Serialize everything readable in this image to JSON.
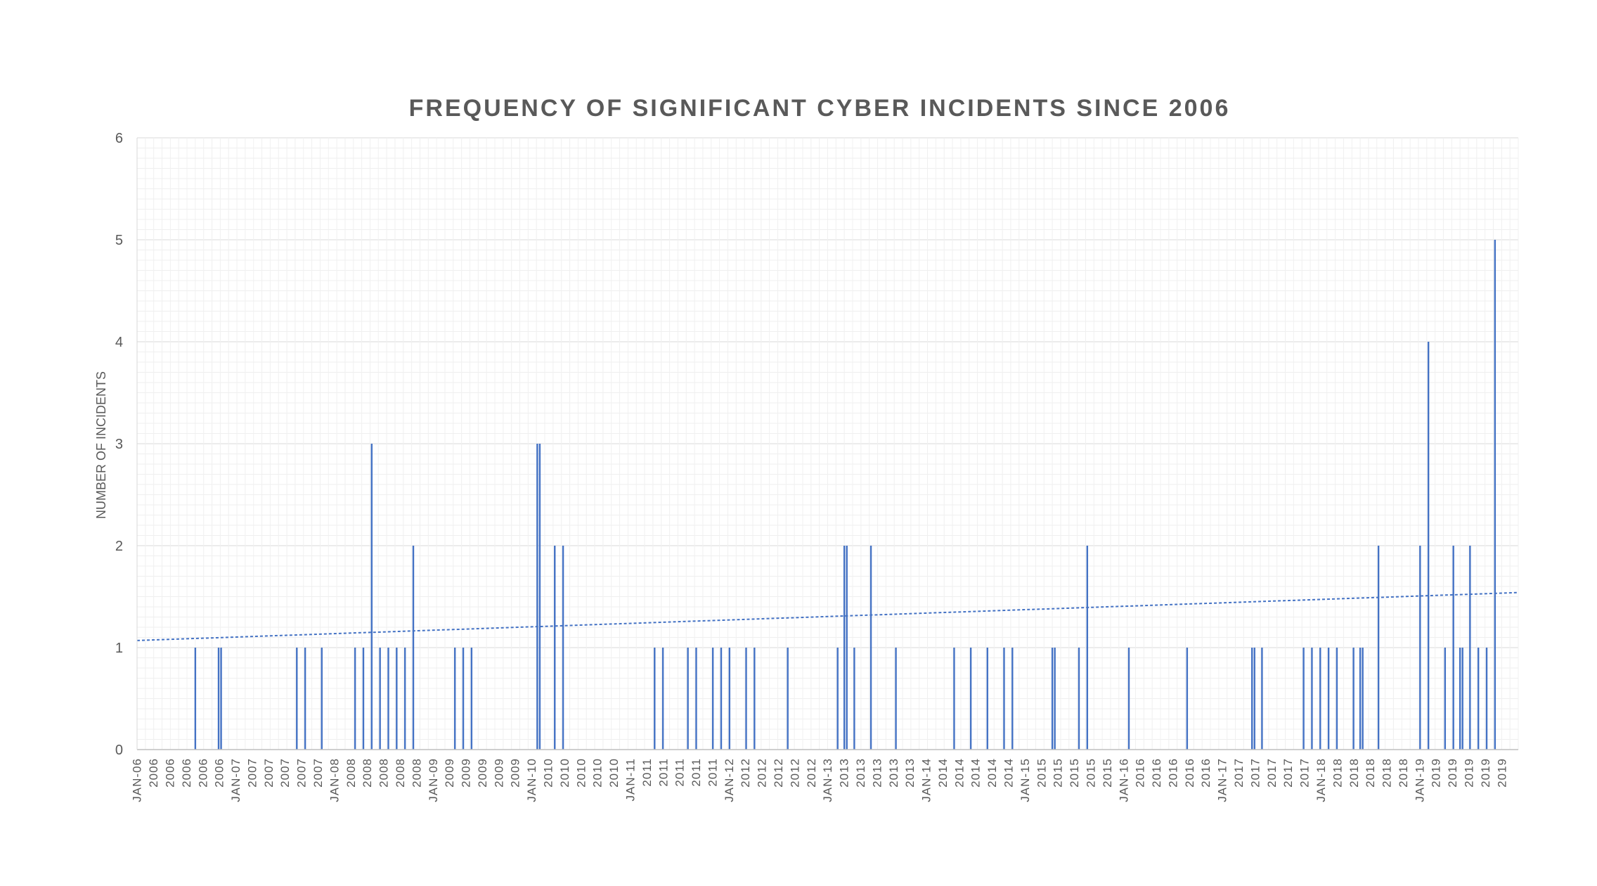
{
  "chart_data": {
    "type": "bar",
    "title": "FREQUENCY OF SIGNIFICANT CYBER INCIDENTS SINCE 2006",
    "xlabel": "",
    "ylabel": "NUMBER OF INCIDENTS",
    "ylim": [
      0,
      6
    ],
    "y_ticks": [
      "0",
      "1",
      "2",
      "3",
      "4",
      "5",
      "6"
    ],
    "grid": true,
    "legend": "none",
    "bar_color": "#4472C4",
    "trendline": {
      "type": "linear",
      "style": "dotted",
      "color": "#4472C4",
      "start": 1.07,
      "end": 1.54
    },
    "x_tick_labels": [
      "JAN-06",
      "2006",
      "2006",
      "2006",
      "2006",
      "2006",
      "JAN-07",
      "2007",
      "2007",
      "2007",
      "2007",
      "2007",
      "JAN-08",
      "2008",
      "2008",
      "2008",
      "2008",
      "2008",
      "JAN-09",
      "2009",
      "2009",
      "2009",
      "2009",
      "2009",
      "JAN-10",
      "2010",
      "2010",
      "2010",
      "2010",
      "2010",
      "JAN-11",
      "2011",
      "2011",
      "2011",
      "2011",
      "2011",
      "JAN-12",
      "2012",
      "2012",
      "2012",
      "2012",
      "2012",
      "JAN-13",
      "2013",
      "2013",
      "2013",
      "2013",
      "2013",
      "JAN-14",
      "2014",
      "2014",
      "2014",
      "2014",
      "2014",
      "JAN-15",
      "2015",
      "2015",
      "2015",
      "2015",
      "2015",
      "JAN-16",
      "2016",
      "2016",
      "2016",
      "2016",
      "2016",
      "JAN-17",
      "2017",
      "2017",
      "2017",
      "2017",
      "2017",
      "JAN-18",
      "2018",
      "2018",
      "2018",
      "2018",
      "2018",
      "JAN-19",
      "2019",
      "2019",
      "2019",
      "2019",
      "2019"
    ],
    "x_range_months": [
      0,
      166
    ],
    "points": [
      {
        "m": 7.0,
        "v": 1
      },
      {
        "m": 9.8,
        "v": 1
      },
      {
        "m": 10.1,
        "v": 1
      },
      {
        "m": 19.2,
        "v": 1
      },
      {
        "m": 20.2,
        "v": 1
      },
      {
        "m": 22.2,
        "v": 1
      },
      {
        "m": 26.2,
        "v": 1
      },
      {
        "m": 27.2,
        "v": 1
      },
      {
        "m": 28.2,
        "v": 3
      },
      {
        "m": 29.2,
        "v": 1
      },
      {
        "m": 30.2,
        "v": 1
      },
      {
        "m": 31.2,
        "v": 1
      },
      {
        "m": 32.2,
        "v": 1
      },
      {
        "m": 33.2,
        "v": 2
      },
      {
        "m": 38.2,
        "v": 1
      },
      {
        "m": 39.2,
        "v": 1
      },
      {
        "m": 40.2,
        "v": 1
      },
      {
        "m": 48.1,
        "v": 3
      },
      {
        "m": 48.4,
        "v": 3
      },
      {
        "m": 50.2,
        "v": 2
      },
      {
        "m": 51.2,
        "v": 2
      },
      {
        "m": 62.2,
        "v": 1
      },
      {
        "m": 63.2,
        "v": 1
      },
      {
        "m": 66.2,
        "v": 1
      },
      {
        "m": 67.2,
        "v": 1
      },
      {
        "m": 69.2,
        "v": 1
      },
      {
        "m": 70.2,
        "v": 1
      },
      {
        "m": 71.2,
        "v": 1
      },
      {
        "m": 73.2,
        "v": 1
      },
      {
        "m": 74.2,
        "v": 1
      },
      {
        "m": 78.2,
        "v": 1
      },
      {
        "m": 84.2,
        "v": 1
      },
      {
        "m": 85.0,
        "v": 2
      },
      {
        "m": 85.3,
        "v": 2
      },
      {
        "m": 86.2,
        "v": 1
      },
      {
        "m": 88.2,
        "v": 2
      },
      {
        "m": 91.2,
        "v": 1
      },
      {
        "m": 98.2,
        "v": 1
      },
      {
        "m": 100.2,
        "v": 1
      },
      {
        "m": 102.2,
        "v": 1
      },
      {
        "m": 104.2,
        "v": 1
      },
      {
        "m": 105.2,
        "v": 1
      },
      {
        "m": 110.0,
        "v": 1
      },
      {
        "m": 110.3,
        "v": 1
      },
      {
        "m": 113.2,
        "v": 1
      },
      {
        "m": 114.2,
        "v": 2
      },
      {
        "m": 119.2,
        "v": 1
      },
      {
        "m": 126.2,
        "v": 1
      },
      {
        "m": 134.0,
        "v": 1
      },
      {
        "m": 134.3,
        "v": 1
      },
      {
        "m": 135.2,
        "v": 1
      },
      {
        "m": 140.2,
        "v": 1
      },
      {
        "m": 141.2,
        "v": 1
      },
      {
        "m": 142.2,
        "v": 1
      },
      {
        "m": 143.2,
        "v": 1
      },
      {
        "m": 144.2,
        "v": 1
      },
      {
        "m": 146.2,
        "v": 1
      },
      {
        "m": 147.0,
        "v": 1
      },
      {
        "m": 147.3,
        "v": 1
      },
      {
        "m": 149.2,
        "v": 2
      },
      {
        "m": 154.2,
        "v": 2
      },
      {
        "m": 155.2,
        "v": 4
      },
      {
        "m": 157.2,
        "v": 1
      },
      {
        "m": 158.2,
        "v": 2
      },
      {
        "m": 159.0,
        "v": 1
      },
      {
        "m": 159.3,
        "v": 1
      },
      {
        "m": 160.2,
        "v": 2
      },
      {
        "m": 161.2,
        "v": 1
      },
      {
        "m": 162.2,
        "v": 1
      },
      {
        "m": 163.2,
        "v": 5
      }
    ]
  }
}
